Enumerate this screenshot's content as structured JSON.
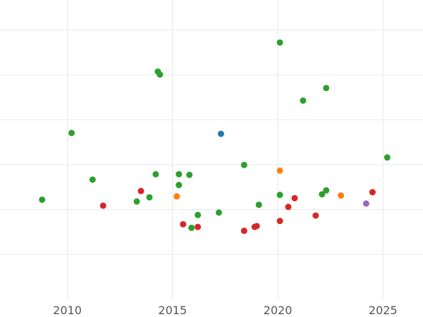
{
  "chart_data": {
    "type": "scatter",
    "title": "",
    "xlabel": "",
    "ylabel": "",
    "xlim": [
      2006.8,
      2026.9
    ],
    "ylim": [
      0,
      1
    ],
    "grid": true,
    "x_ticks": [
      2010,
      2015,
      2020,
      2025
    ],
    "x_tick_labels": [
      "2010",
      "2015",
      "2020",
      "2025"
    ],
    "y_gridlines": [
      0.15,
      0.3,
      0.45,
      0.6,
      0.75,
      0.9
    ],
    "colors": {
      "blue": "#1f77b4",
      "orange": "#ff7f0e",
      "green": "#2ca02c",
      "red": "#d62728",
      "purple": "#9467bd"
    },
    "series": [
      {
        "color": "#2ca02c",
        "x": [
          2008.8,
          2010.2,
          2011.2,
          2013.3,
          2013.9,
          2014.2,
          2014.3,
          2014.4,
          2015.3,
          2015.3,
          2015.8,
          2015.9,
          2016.2,
          2017.2,
          2018.4,
          2019.1,
          2020.1,
          2020.1,
          2021.2,
          2022.1,
          2022.3,
          2022.3,
          2025.2
        ],
        "y": [
          0.333,
          0.556,
          0.4,
          0.327,
          0.341,
          0.418,
          0.761,
          0.751,
          0.418,
          0.382,
          0.416,
          0.239,
          0.282,
          0.29,
          0.449,
          0.316,
          0.858,
          0.349,
          0.664,
          0.351,
          0.364,
          0.706,
          0.474
        ]
      },
      {
        "color": "#d62728",
        "x": [
          2011.7,
          2013.5,
          2015.5,
          2016.2,
          2018.4,
          2018.9,
          2019.0,
          2020.1,
          2020.5,
          2020.8,
          2021.8,
          2024.5
        ],
        "y": [
          0.313,
          0.362,
          0.251,
          0.242,
          0.229,
          0.242,
          0.245,
          0.262,
          0.309,
          0.338,
          0.28,
          0.358
        ]
      },
      {
        "color": "#1f77b4",
        "x": [
          2017.3
        ],
        "y": [
          0.553
        ]
      },
      {
        "color": "#ff7f0e",
        "x": [
          2015.2,
          2020.1,
          2023.0
        ],
        "y": [
          0.344,
          0.43,
          0.347
        ]
      },
      {
        "color": "#9467bd",
        "x": [
          2024.2
        ],
        "y": [
          0.32
        ]
      }
    ]
  }
}
